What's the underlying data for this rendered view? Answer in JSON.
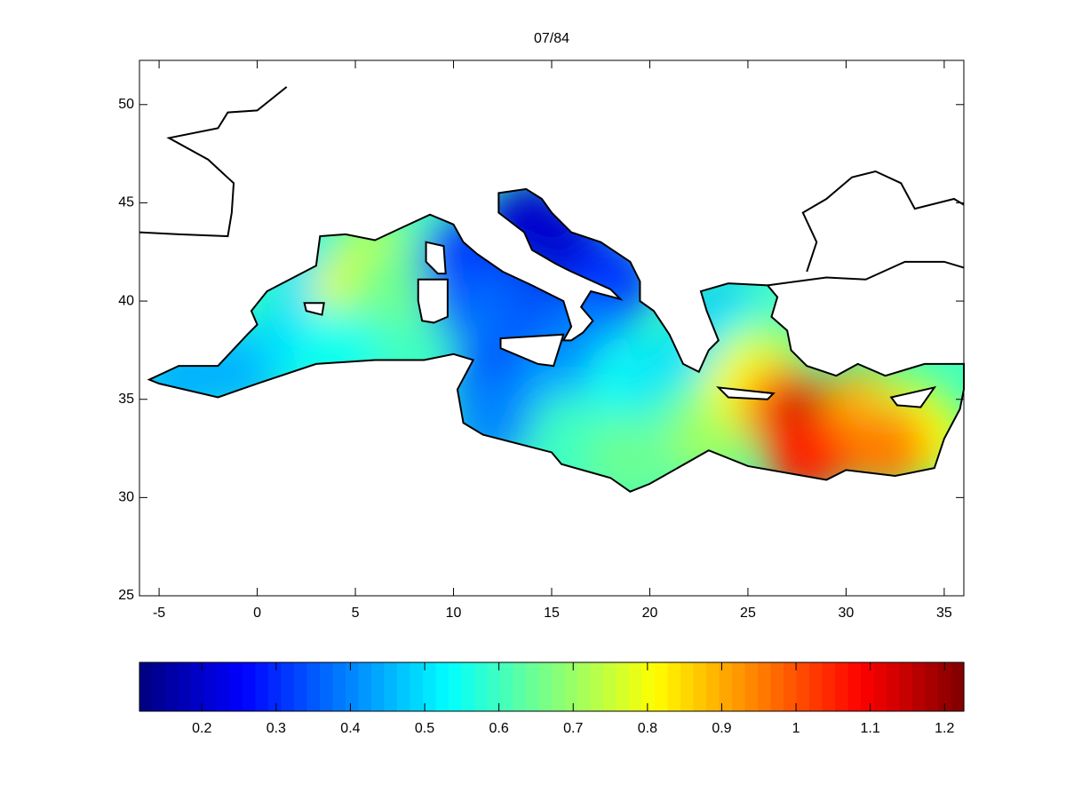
{
  "chart_data": {
    "type": "map",
    "title": "07/84",
    "xlim": [
      -6,
      36
    ],
    "ylim": [
      25,
      52.25
    ],
    "xticks": [
      -5,
      0,
      5,
      10,
      15,
      20,
      25,
      30,
      35
    ],
    "yticks": [
      25,
      30,
      35,
      40,
      45,
      50
    ],
    "clim": [
      0.116,
      1.226
    ],
    "cticks": [
      0.2,
      0.3,
      0.4,
      0.5,
      0.6,
      0.7,
      0.8,
      0.9,
      1,
      1.1,
      1.2
    ],
    "field": {
      "lon": [
        -4,
        -1,
        2,
        3,
        5,
        6,
        6,
        8,
        4,
        7.5,
        10.5,
        11,
        13,
        14,
        14,
        16,
        18,
        12,
        12,
        16,
        17,
        19,
        16,
        19,
        21,
        22,
        23,
        24,
        25,
        26,
        25,
        27,
        28.5,
        30,
        31,
        33,
        34,
        28,
        32
      ],
      "lat": [
        36,
        36.5,
        38,
        41,
        40.5,
        42,
        39,
        38.5,
        37.5,
        41,
        42,
        40,
        39,
        40,
        44,
        42.5,
        41,
        36,
        34,
        36,
        38,
        36,
        33,
        32,
        36,
        34,
        33,
        39,
        38,
        37,
        35.7,
        34.5,
        33.5,
        33,
        34.5,
        34,
        33,
        32.2,
        32.5
      ],
      "values": [
        0.45,
        0.45,
        0.5,
        0.5,
        0.8,
        0.75,
        0.7,
        0.6,
        0.55,
        0.65,
        0.3,
        0.35,
        0.4,
        0.35,
        0.2,
        0.2,
        0.3,
        0.35,
        0.4,
        0.45,
        0.4,
        0.55,
        0.6,
        0.65,
        0.5,
        0.6,
        0.7,
        0.45,
        0.55,
        0.7,
        0.8,
        1.0,
        1.2,
        1.1,
        0.9,
        0.75,
        0.8,
        1.05,
        0.95
      ]
    }
  }
}
